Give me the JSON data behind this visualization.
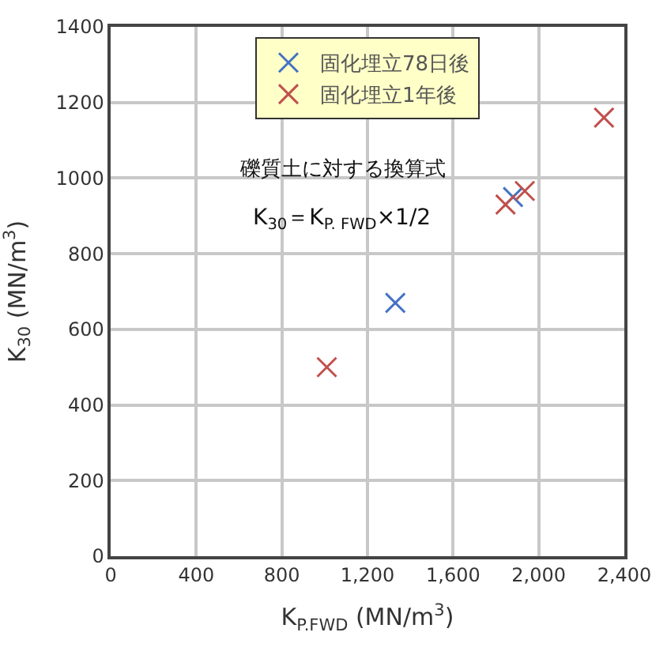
{
  "chart_data": {
    "type": "scatter",
    "xlabel": "K$_{P.FWD}$ (MN/m$^{3}$)",
    "ylabel": "K$_{30}$ (MN/m$^{3}$)",
    "annotations": [
      "礫質土に対する換算式",
      "K$_{30}$＝K$_{P. FWD}$×1/2"
    ],
    "series": [
      {
        "name": "固化埋立78日後",
        "color": "#4472c4",
        "marker": "cross",
        "x": [
          1330,
          1880
        ],
        "values": [
          670,
          950
        ]
      },
      {
        "name": "固化埋立1年後",
        "color": "#c0504d",
        "marker": "cross",
        "x": [
          1010,
          1845,
          1935,
          2305
        ],
        "values": [
          500,
          930,
          966,
          1160
        ]
      }
    ],
    "xlim": [
      0,
      2400
    ],
    "xticks": [
      0,
      {
        "value": 400,
        "label": "400"
      },
      {
        "value": 800,
        "label": "800"
      },
      {
        "value": 1200,
        "label": "1,200"
      },
      {
        "value": 1600,
        "label": "1,600"
      },
      {
        "value": 2000,
        "label": "2,000"
      },
      {
        "value": 2400,
        "label": "2,400"
      }
    ],
    "ylim": [
      0,
      1400
    ],
    "yticks": [
      0,
      200,
      400,
      600,
      800,
      1000,
      1200,
      1400
    ],
    "grid": true,
    "legend": "top"
  }
}
